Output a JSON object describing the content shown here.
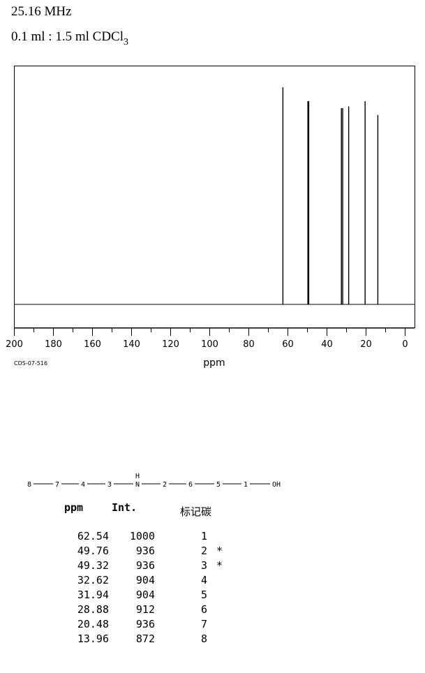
{
  "header": {
    "frequency": "25.16 MHz",
    "solvent_prefix": "0.1 ml : 1.5 ml CDCl",
    "solvent_sub": "3"
  },
  "spectrum_id": "CDS-07-516",
  "chart_data": {
    "type": "line",
    "xlabel": "ppm",
    "xlim": [
      200,
      0
    ],
    "xticks": [
      200,
      180,
      160,
      140,
      120,
      100,
      80,
      60,
      40,
      20,
      0
    ],
    "tick_labels": [
      "200",
      "180",
      "160",
      "140",
      "120",
      "100",
      "80",
      "60",
      "40",
      "20",
      "0"
    ],
    "grid": false,
    "peaks": [
      {
        "ppm": 62.54,
        "intensity": 1000
      },
      {
        "ppm": 49.76,
        "intensity": 936
      },
      {
        "ppm": 49.32,
        "intensity": 936
      },
      {
        "ppm": 32.62,
        "intensity": 904
      },
      {
        "ppm": 31.94,
        "intensity": 904
      },
      {
        "ppm": 28.88,
        "intensity": 912
      },
      {
        "ppm": 20.48,
        "intensity": 936
      },
      {
        "ppm": 13.96,
        "intensity": 872
      }
    ]
  },
  "structure": {
    "atoms": [
      "8",
      "7",
      "4",
      "3",
      "N",
      "2",
      "6",
      "5",
      "1",
      "OH"
    ],
    "n_hydrogen": "H"
  },
  "table": {
    "headers": {
      "ppm": "ppm",
      "int": "Int.",
      "carbon": "标记碳"
    },
    "rows": [
      {
        "ppm": "62.54",
        "int": "1000",
        "carbon": "1",
        "mark": ""
      },
      {
        "ppm": "49.76",
        "int": "936",
        "carbon": "2",
        "mark": "*"
      },
      {
        "ppm": "49.32",
        "int": "936",
        "carbon": "3",
        "mark": "*"
      },
      {
        "ppm": "32.62",
        "int": "904",
        "carbon": "4",
        "mark": ""
      },
      {
        "ppm": "31.94",
        "int": "904",
        "carbon": "5",
        "mark": ""
      },
      {
        "ppm": "28.88",
        "int": "912",
        "carbon": "6",
        "mark": ""
      },
      {
        "ppm": "20.48",
        "int": "936",
        "carbon": "7",
        "mark": ""
      },
      {
        "ppm": "13.96",
        "int": "872",
        "carbon": "8",
        "mark": ""
      }
    ]
  }
}
